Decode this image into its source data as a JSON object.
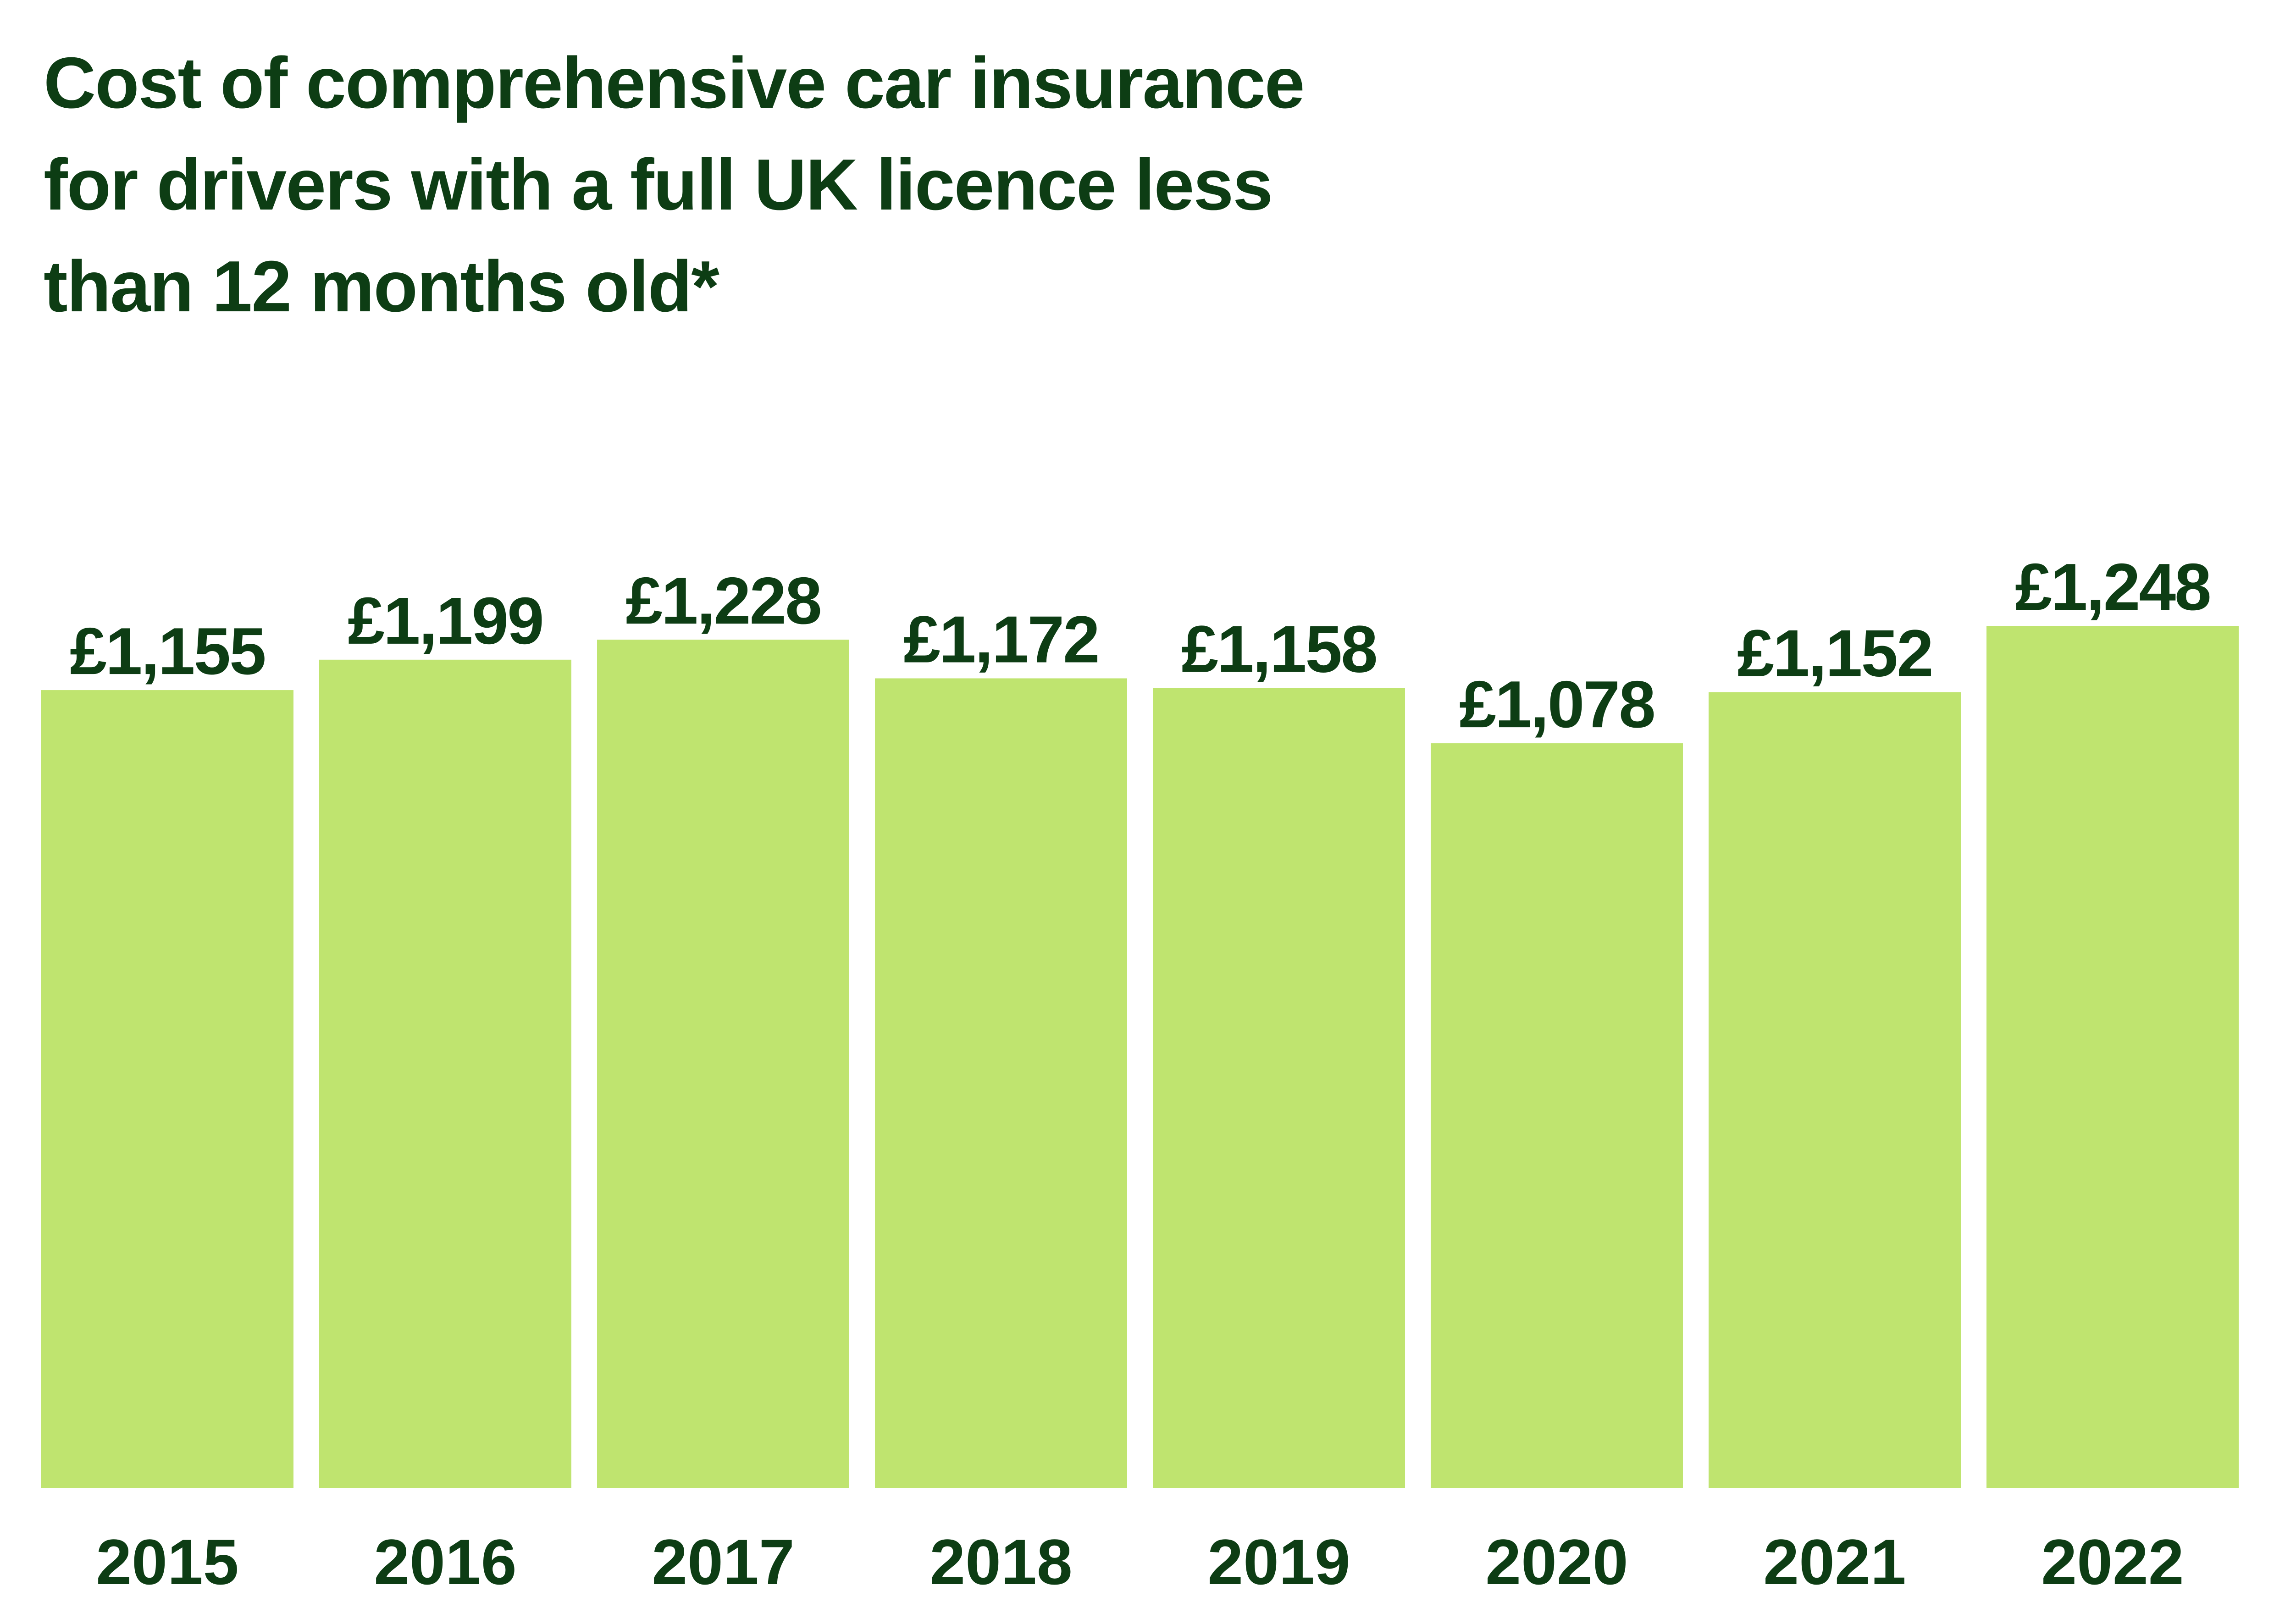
{
  "title_lines": [
    "Cost of comprehensive car insurance",
    "for drivers with a full UK licence less",
    "than 12 months old*"
  ],
  "colors": {
    "bar": "#bfe46f",
    "text": "#0d3d14",
    "background": "#ffffff"
  },
  "chart_data": {
    "type": "bar",
    "title": "Cost of comprehensive car insurance for drivers with a full UK licence less than 12 months old*",
    "xlabel": "",
    "ylabel": "",
    "categories": [
      "2015",
      "2016",
      "2017",
      "2018",
      "2019",
      "2020",
      "2021",
      "2022"
    ],
    "values": [
      1155,
      1199,
      1228,
      1172,
      1158,
      1078,
      1152,
      1248
    ],
    "value_labels": [
      "£1,155",
      "£1,199",
      "£1,228",
      "£1,172",
      "£1,158",
      "£1,078",
      "£1,152",
      "£1,248"
    ],
    "ylim": [
      0,
      1248
    ],
    "grid": false,
    "legend": "none"
  }
}
